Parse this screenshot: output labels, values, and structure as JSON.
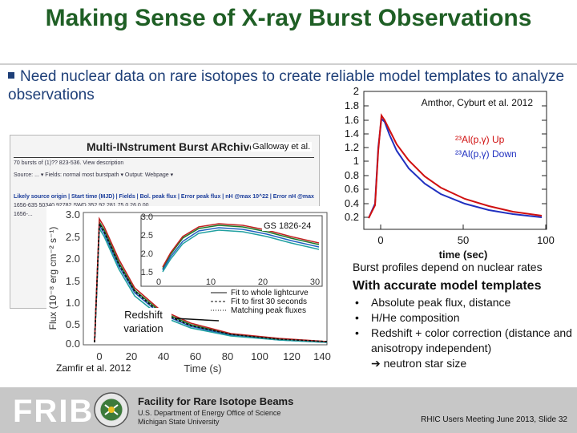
{
  "slide": {
    "title": "Making Sense of X-ray Burst Observations",
    "bullet_main": "Need nuclear data on rare isotopes to create reliable model templates to analyze observations",
    "credit_right": "Amthor, Cyburt et al. 2012",
    "legend_up": "²³Al(p,γ) Up",
    "legend_down": "²³Al(p,γ) Down",
    "right_xlabel": "time (sec)",
    "right_yticks": [
      "2",
      "1.8",
      "1.6",
      "1.4",
      "1.2",
      "1",
      "0.8",
      "0.6",
      "0.4",
      "0.2"
    ],
    "right_xticks": [
      "0",
      "50",
      "100"
    ],
    "archive_title": "Multi-INstrument Burst ARchive",
    "archive_caption": "Galloway et al.",
    "archive_rows": [
      "70 bursts of (1)?? 823-536. View description",
      "Source: ... ▾   Fields: normal most burstpath ▾   Output: Webpage ▾",
      "Likely source origin | Start time (MJD) | Fields | Bol. peak flux | Error peak flux | nH @max 10^22 | Error nH @max",
      "1656-635   50340.92782   SWD   352.92   281.75   0.26   0.00",
      "1656-..."
    ],
    "gs_label": "GS 1826-24",
    "redshift_label": "Redshift variation",
    "zamfir_credit": "Zamfir et al. 2012",
    "flux_ylabel": "Flux (10⁻⁸ erg cm⁻² s⁻¹)",
    "flux_xlabel": "Time (s)",
    "flux_yticks": [
      "3.0",
      "2.5",
      "2.0",
      "1.5",
      "1.0",
      "0.5",
      "0.0"
    ],
    "flux_xticks": [
      "0",
      "20",
      "40",
      "60",
      "80",
      "100",
      "120",
      "140"
    ],
    "inset_yticks": [
      "3.0",
      "2.5",
      "2.0",
      "1.5"
    ],
    "inset_xticks": [
      "0",
      "10",
      "20",
      "30"
    ],
    "legend_fit1": "Fit to whole lightcurve",
    "legend_fit2": "Fit to first 30 seconds",
    "legend_fit3": "Matching peak fluxes",
    "burst_profiles": "Burst profiles depend on nuclear rates",
    "with_accurate": "With accurate model templates",
    "bullets": [
      "Absolute peak flux, distance",
      "H/He composition",
      "Redshift + color correction (distance and anisotropy independent)"
    ],
    "arrow_item": "neutron star size",
    "footer_facility": "Facility for Rare Isotope Beams",
    "footer_doe": "U.S. Department of Energy Office of Science",
    "footer_msu": "Michigan State University",
    "footer_frib": "FRIB",
    "slide_number": "RHIC Users Meeting June 2013, Slide 32"
  },
  "colors": {
    "title_green": "#1f5f25",
    "bullet_blue": "#1e3f78",
    "series_up": "#d01010",
    "series_down": "#2030c0",
    "footer_gray": "#c7c7c7"
  }
}
